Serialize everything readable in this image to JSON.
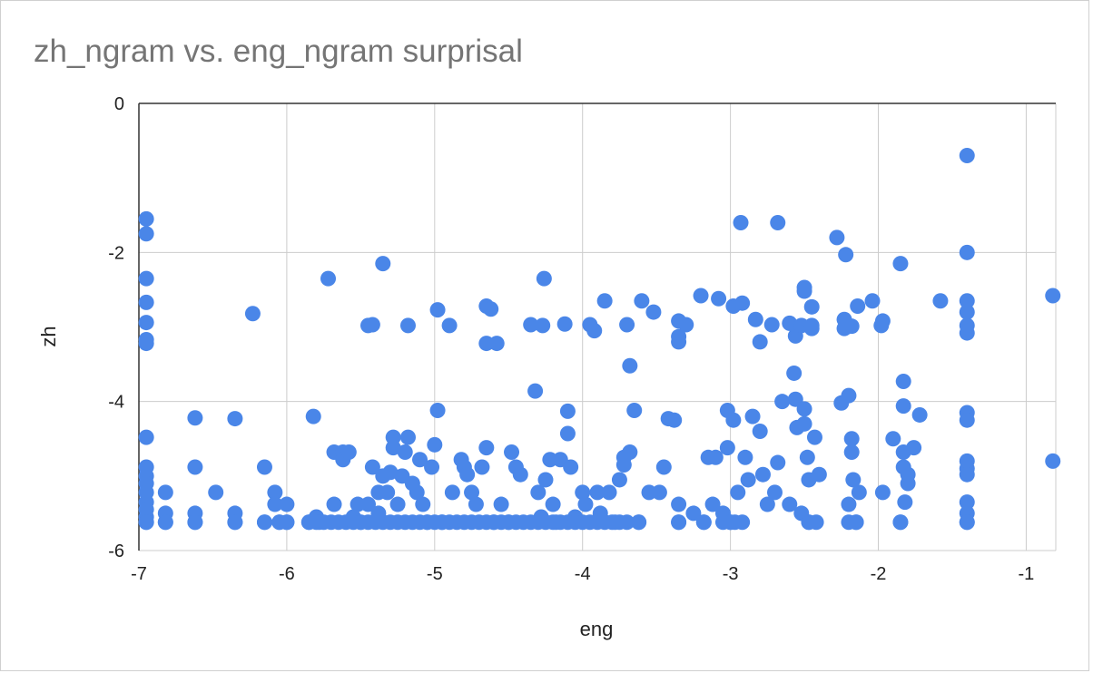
{
  "title": "zh_ngram vs. eng_ngram surprisal",
  "colors": {
    "points": "#4a86e8",
    "grid": "#cccccc",
    "axis": "#333333",
    "title": "#757575"
  },
  "chart_data": {
    "type": "scatter",
    "title": "zh_ngram vs. eng_ngram surprisal",
    "xlabel": "eng",
    "ylabel": "zh",
    "xlim": [
      -7,
      -0.8
    ],
    "ylim": [
      -6,
      0
    ],
    "xticks": [
      "-7",
      "-6",
      "-5",
      "-4",
      "-3",
      "-2",
      "-1"
    ],
    "yticks": [
      "0",
      "-2",
      "-4",
      "-6"
    ],
    "grid": true,
    "legend": "none",
    "points": [
      [
        -6.95,
        -1.55
      ],
      [
        -6.95,
        -1.75
      ],
      [
        -6.95,
        -2.35
      ],
      [
        -6.95,
        -2.67
      ],
      [
        -6.95,
        -2.94
      ],
      [
        -6.95,
        -3.17
      ],
      [
        -6.95,
        -3.22
      ],
      [
        -6.95,
        -4.48
      ],
      [
        -6.95,
        -4.88
      ],
      [
        -6.95,
        -5.0
      ],
      [
        -6.95,
        -5.1
      ],
      [
        -6.95,
        -5.22
      ],
      [
        -6.95,
        -5.35
      ],
      [
        -6.95,
        -5.45
      ],
      [
        -6.95,
        -5.55
      ],
      [
        -6.95,
        -5.62
      ],
      [
        -6.82,
        -5.22
      ],
      [
        -6.82,
        -5.5
      ],
      [
        -6.82,
        -5.62
      ],
      [
        -6.62,
        -4.22
      ],
      [
        -6.62,
        -4.88
      ],
      [
        -6.62,
        -5.5
      ],
      [
        -6.62,
        -5.62
      ],
      [
        -6.48,
        -5.22
      ],
      [
        -6.35,
        -4.23
      ],
      [
        -6.35,
        -5.5
      ],
      [
        -6.35,
        -5.62
      ],
      [
        -6.23,
        -2.82
      ],
      [
        -6.15,
        -4.88
      ],
      [
        -6.15,
        -5.62
      ],
      [
        -6.08,
        -5.22
      ],
      [
        -6.08,
        -5.38
      ],
      [
        -6.05,
        -5.62
      ],
      [
        -6.0,
        -5.38
      ],
      [
        -6.0,
        -5.62
      ],
      [
        -5.85,
        -5.62
      ],
      [
        -5.82,
        -4.2
      ],
      [
        -5.8,
        -5.55
      ],
      [
        -5.78,
        -5.62
      ],
      [
        -5.72,
        -2.35
      ],
      [
        -5.68,
        -5.38
      ],
      [
        -5.68,
        -4.68
      ],
      [
        -5.62,
        -4.68
      ],
      [
        -5.62,
        -4.78
      ],
      [
        -5.58,
        -4.68
      ],
      [
        -5.55,
        -5.55
      ],
      [
        -5.52,
        -5.38
      ],
      [
        -5.5,
        -5.62
      ],
      [
        -5.45,
        -5.38
      ],
      [
        -5.45,
        -2.98
      ],
      [
        -5.42,
        -2.97
      ],
      [
        -5.42,
        -4.88
      ],
      [
        -5.38,
        -5.22
      ],
      [
        -5.38,
        -5.5
      ],
      [
        -5.35,
        -2.15
      ],
      [
        -5.35,
        -5.0
      ],
      [
        -5.32,
        -5.22
      ],
      [
        -5.3,
        -4.95
      ],
      [
        -5.28,
        -4.62
      ],
      [
        -5.28,
        -4.48
      ],
      [
        -5.25,
        -5.38
      ],
      [
        -5.22,
        -5.0
      ],
      [
        -5.2,
        -4.68
      ],
      [
        -5.18,
        -4.48
      ],
      [
        -5.18,
        -2.98
      ],
      [
        -5.15,
        -5.1
      ],
      [
        -5.12,
        -5.22
      ],
      [
        -5.1,
        -4.78
      ],
      [
        -5.08,
        -5.38
      ],
      [
        -5.05,
        -5.62
      ],
      [
        -5.02,
        -4.88
      ],
      [
        -5.0,
        -4.58
      ],
      [
        -4.98,
        -2.77
      ],
      [
        -4.98,
        -4.12
      ],
      [
        -4.95,
        -5.62
      ],
      [
        -4.9,
        -2.98
      ],
      [
        -4.88,
        -5.22
      ],
      [
        -4.82,
        -4.78
      ],
      [
        -4.8,
        -4.88
      ],
      [
        -4.78,
        -4.98
      ],
      [
        -4.75,
        -5.22
      ],
      [
        -4.72,
        -5.38
      ],
      [
        -4.68,
        -4.88
      ],
      [
        -4.65,
        -4.62
      ],
      [
        -4.65,
        -3.22
      ],
      [
        -4.65,
        -2.72
      ],
      [
        -4.62,
        -2.76
      ],
      [
        -4.6,
        -5.62
      ],
      [
        -4.58,
        -3.22
      ],
      [
        -4.55,
        -5.38
      ],
      [
        -4.5,
        -5.62
      ],
      [
        -4.48,
        -4.68
      ],
      [
        -4.45,
        -4.88
      ],
      [
        -4.42,
        -4.98
      ],
      [
        -4.35,
        -2.97
      ],
      [
        -4.32,
        -3.86
      ],
      [
        -4.3,
        -5.22
      ],
      [
        -4.28,
        -5.55
      ],
      [
        -4.27,
        -2.98
      ],
      [
        -4.26,
        -2.35
      ],
      [
        -4.25,
        -5.05
      ],
      [
        -4.22,
        -4.78
      ],
      [
        -4.2,
        -5.38
      ],
      [
        -4.18,
        -5.62
      ],
      [
        -4.15,
        -4.78
      ],
      [
        -4.12,
        -2.96
      ],
      [
        -4.1,
        -4.43
      ],
      [
        -4.1,
        -4.13
      ],
      [
        -4.08,
        -4.88
      ],
      [
        -4.05,
        -5.55
      ],
      [
        -4.0,
        -5.22
      ],
      [
        -3.98,
        -5.38
      ],
      [
        -3.95,
        -2.97
      ],
      [
        -3.92,
        -3.05
      ],
      [
        -3.9,
        -5.22
      ],
      [
        -3.88,
        -5.5
      ],
      [
        -3.85,
        -2.65
      ],
      [
        -3.82,
        -5.22
      ],
      [
        -3.78,
        -5.62
      ],
      [
        -3.75,
        -5.05
      ],
      [
        -3.72,
        -4.75
      ],
      [
        -3.72,
        -4.85
      ],
      [
        -3.7,
        -2.97
      ],
      [
        -3.68,
        -4.68
      ],
      [
        -3.68,
        -3.52
      ],
      [
        -3.65,
        -4.12
      ],
      [
        -3.62,
        -5.62
      ],
      [
        -3.6,
        -2.65
      ],
      [
        -3.55,
        -5.22
      ],
      [
        -3.52,
        -2.8
      ],
      [
        -3.48,
        -5.22
      ],
      [
        -3.45,
        -4.88
      ],
      [
        -3.42,
        -4.23
      ],
      [
        -3.38,
        -4.25
      ],
      [
        -3.35,
        -5.38
      ],
      [
        -3.35,
        -5.62
      ],
      [
        -3.35,
        -2.92
      ],
      [
        -3.35,
        -3.13
      ],
      [
        -3.35,
        -3.2
      ],
      [
        -3.3,
        -2.97
      ],
      [
        -3.25,
        -5.5
      ],
      [
        -3.2,
        -2.58
      ],
      [
        -3.18,
        -5.62
      ],
      [
        -3.15,
        -4.75
      ],
      [
        -3.12,
        -5.38
      ],
      [
        -3.1,
        -4.75
      ],
      [
        -3.08,
        -2.62
      ],
      [
        -3.05,
        -5.5
      ],
      [
        -3.02,
        -4.62
      ],
      [
        -3.02,
        -4.12
      ],
      [
        -3.0,
        -5.62
      ],
      [
        -2.98,
        -2.72
      ],
      [
        -2.98,
        -4.25
      ],
      [
        -2.95,
        -5.22
      ],
      [
        -2.93,
        -1.6
      ],
      [
        -2.92,
        -2.68
      ],
      [
        -2.9,
        -4.75
      ],
      [
        -2.88,
        -5.05
      ],
      [
        -2.85,
        -4.2
      ],
      [
        -2.83,
        -2.9
      ],
      [
        -2.8,
        -4.4
      ],
      [
        -2.8,
        -3.2
      ],
      [
        -2.78,
        -4.98
      ],
      [
        -2.75,
        -5.38
      ],
      [
        -2.72,
        -2.97
      ],
      [
        -2.7,
        -5.22
      ],
      [
        -2.68,
        -1.6
      ],
      [
        -2.68,
        -4.82
      ],
      [
        -2.65,
        -4.0
      ],
      [
        -2.6,
        -5.38
      ],
      [
        -2.6,
        -2.95
      ],
      [
        -2.57,
        -3.62
      ],
      [
        -2.56,
        -3.12
      ],
      [
        -2.56,
        -3.97
      ],
      [
        -2.55,
        -4.35
      ],
      [
        -2.52,
        -2.98
      ],
      [
        -2.52,
        -5.5
      ],
      [
        -2.5,
        -2.47
      ],
      [
        -2.5,
        -2.52
      ],
      [
        -2.5,
        -4.1
      ],
      [
        -2.5,
        -4.3
      ],
      [
        -2.48,
        -4.75
      ],
      [
        -2.47,
        -5.05
      ],
      [
        -2.47,
        -5.62
      ],
      [
        -2.45,
        -2.98
      ],
      [
        -2.45,
        -3.02
      ],
      [
        -2.45,
        -2.73
      ],
      [
        -2.43,
        -4.48
      ],
      [
        -2.4,
        -4.98
      ],
      [
        -2.28,
        -1.8
      ],
      [
        -2.25,
        -4.02
      ],
      [
        -2.23,
        -2.9
      ],
      [
        -2.23,
        -3.02
      ],
      [
        -2.22,
        -2.03
      ],
      [
        -2.2,
        -3.92
      ],
      [
        -2.2,
        -5.38
      ],
      [
        -2.18,
        -2.99
      ],
      [
        -2.18,
        -4.5
      ],
      [
        -2.18,
        -4.68
      ],
      [
        -2.17,
        -5.05
      ],
      [
        -2.15,
        -5.62
      ],
      [
        -2.14,
        -2.72
      ],
      [
        -2.13,
        -5.22
      ],
      [
        -2.04,
        -2.65
      ],
      [
        -1.98,
        -2.98
      ],
      [
        -1.97,
        -2.92
      ],
      [
        -1.97,
        -5.22
      ],
      [
        -1.9,
        -4.5
      ],
      [
        -1.85,
        -2.15
      ],
      [
        -1.83,
        -3.73
      ],
      [
        -1.83,
        -4.06
      ],
      [
        -1.83,
        -4.68
      ],
      [
        -1.83,
        -4.88
      ],
      [
        -1.82,
        -5.35
      ],
      [
        -1.8,
        -4.98
      ],
      [
        -1.8,
        -5.1
      ],
      [
        -1.85,
        -5.62
      ],
      [
        -1.76,
        -4.62
      ],
      [
        -1.72,
        -4.18
      ],
      [
        -1.58,
        -2.65
      ],
      [
        -1.4,
        -0.7
      ],
      [
        -1.4,
        -2.0
      ],
      [
        -1.4,
        -2.65
      ],
      [
        -1.4,
        -2.8
      ],
      [
        -1.4,
        -2.98
      ],
      [
        -1.4,
        -3.08
      ],
      [
        -1.4,
        -4.15
      ],
      [
        -1.4,
        -4.25
      ],
      [
        -1.4,
        -4.8
      ],
      [
        -1.4,
        -4.9
      ],
      [
        -1.4,
        -4.98
      ],
      [
        -1.4,
        -5.35
      ],
      [
        -1.4,
        -5.5
      ],
      [
        -1.4,
        -5.62
      ],
      [
        -0.82,
        -2.58
      ],
      [
        -0.82,
        -4.8
      ]
    ],
    "bottom_row_x": [
      -6.95,
      -6.82,
      -6.62,
      -6.35,
      -6.15,
      -6.05,
      -6.0,
      -5.85,
      -5.8,
      -5.75,
      -5.7,
      -5.65,
      -5.6,
      -5.55,
      -5.5,
      -5.45,
      -5.4,
      -5.35,
      -5.3,
      -5.25,
      -5.2,
      -5.15,
      -5.1,
      -5.05,
      -5.0,
      -4.95,
      -4.9,
      -4.85,
      -4.8,
      -4.75,
      -4.7,
      -4.65,
      -4.6,
      -4.55,
      -4.5,
      -4.45,
      -4.4,
      -4.35,
      -4.3,
      -4.25,
      -4.2,
      -4.15,
      -4.1,
      -4.05,
      -4.0,
      -3.95,
      -3.9,
      -3.85,
      -3.8,
      -3.75,
      -3.7,
      -3.62,
      -3.35,
      -3.18,
      -3.05,
      -3.0,
      -2.97,
      -2.92,
      -2.47,
      -2.42,
      -2.2,
      -2.15,
      -1.85,
      -1.4
    ],
    "bottom_row_y": -5.62
  }
}
